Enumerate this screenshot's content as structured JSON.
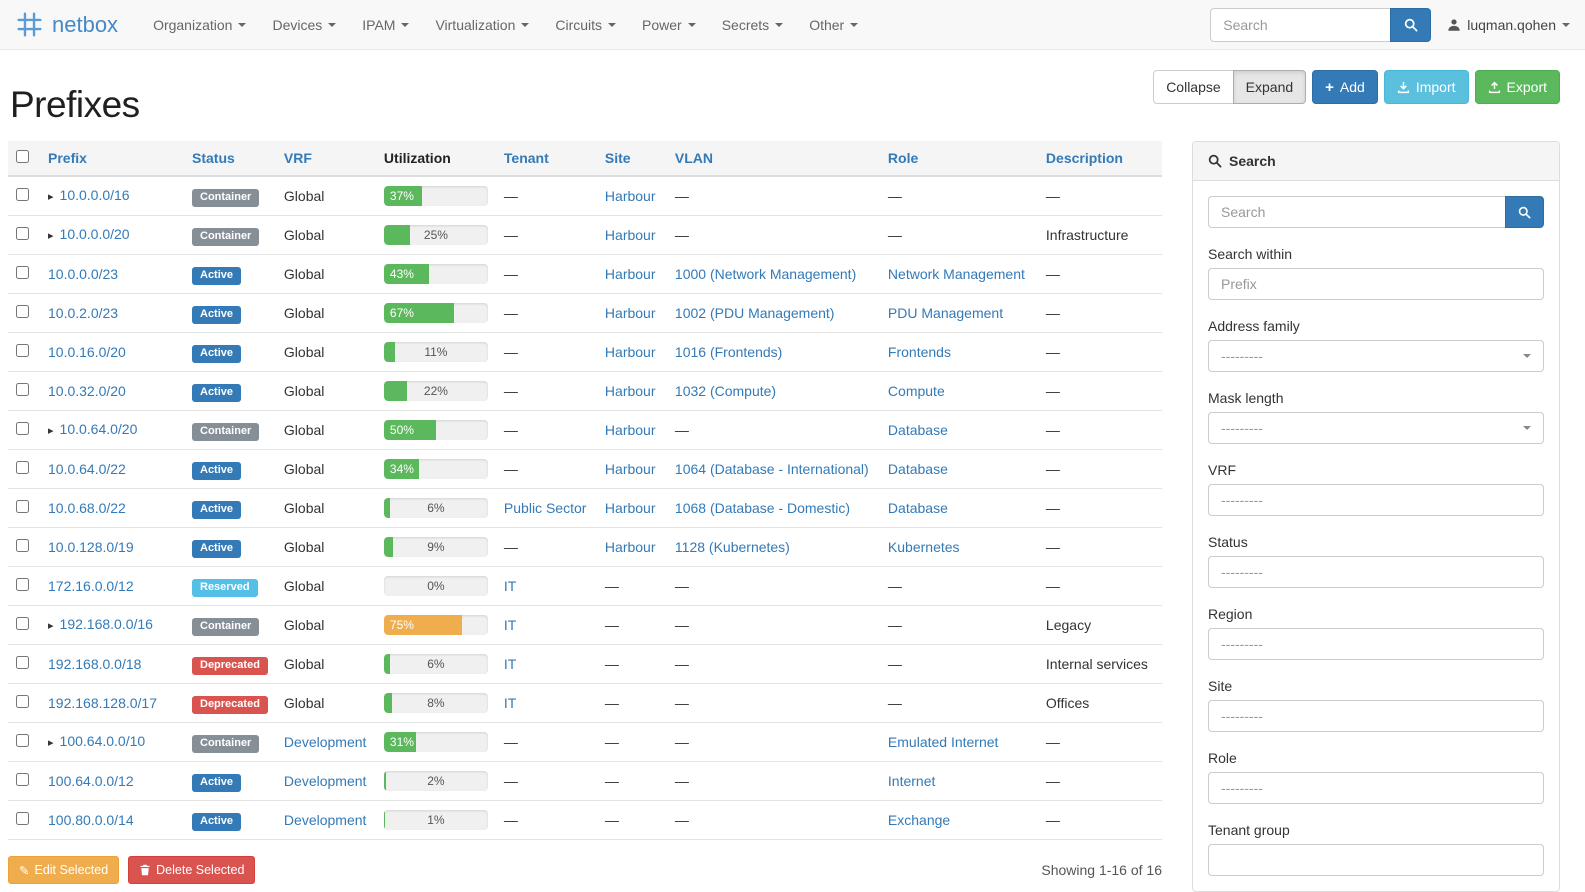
{
  "navbar": {
    "brand": "netbox",
    "menus": [
      "Organization",
      "Devices",
      "IPAM",
      "Virtualization",
      "Circuits",
      "Power",
      "Secrets",
      "Other"
    ],
    "search_placeholder": "Search",
    "user": "luqman.qohen"
  },
  "page": {
    "title": "Prefixes",
    "toolbar": {
      "collapse": "Collapse",
      "expand": "Expand",
      "add": "Add",
      "import": "Import",
      "export": "Export"
    },
    "footer": {
      "edit_selected": "Edit Selected",
      "delete_selected": "Delete Selected",
      "showing": "Showing 1-16 of 16"
    }
  },
  "table": {
    "columns": [
      {
        "label": "Prefix",
        "sortable": true
      },
      {
        "label": "Status",
        "sortable": true
      },
      {
        "label": "VRF",
        "sortable": true
      },
      {
        "label": "Utilization",
        "sortable": false
      },
      {
        "label": "Tenant",
        "sortable": true
      },
      {
        "label": "Site",
        "sortable": true
      },
      {
        "label": "VLAN",
        "sortable": true
      },
      {
        "label": "Role",
        "sortable": true
      },
      {
        "label": "Description",
        "sortable": true
      }
    ],
    "rows": [
      {
        "expand": true,
        "prefix": "10.0.0.0/16",
        "status": {
          "label": "Container",
          "type": "default"
        },
        "vrf": {
          "label": "Global",
          "is_link": false
        },
        "utilization": {
          "pct": 37,
          "label": "37%",
          "color": "success"
        },
        "tenant": {
          "label": "—",
          "is_link": false
        },
        "site": {
          "label": "Harbour",
          "is_link": true
        },
        "vlan": {
          "label": "—",
          "is_link": false
        },
        "role": {
          "label": "—",
          "is_link": false
        },
        "description": "—"
      },
      {
        "expand": true,
        "prefix": "10.0.0.0/20",
        "status": {
          "label": "Container",
          "type": "default"
        },
        "vrf": {
          "label": "Global",
          "is_link": false
        },
        "utilization": {
          "pct": 25,
          "label": "25%",
          "color": "success"
        },
        "tenant": {
          "label": "—",
          "is_link": false
        },
        "site": {
          "label": "Harbour",
          "is_link": true
        },
        "vlan": {
          "label": "—",
          "is_link": false
        },
        "role": {
          "label": "—",
          "is_link": false
        },
        "description": "Infrastructure"
      },
      {
        "expand": false,
        "prefix": "10.0.0.0/23",
        "status": {
          "label": "Active",
          "type": "primary"
        },
        "vrf": {
          "label": "Global",
          "is_link": false
        },
        "utilization": {
          "pct": 43,
          "label": "43%",
          "color": "success"
        },
        "tenant": {
          "label": "—",
          "is_link": false
        },
        "site": {
          "label": "Harbour",
          "is_link": true
        },
        "vlan": {
          "label": "1000 (Network Management)",
          "is_link": true
        },
        "role": {
          "label": "Network Management",
          "is_link": true
        },
        "description": "—"
      },
      {
        "expand": false,
        "prefix": "10.0.2.0/23",
        "status": {
          "label": "Active",
          "type": "primary"
        },
        "vrf": {
          "label": "Global",
          "is_link": false
        },
        "utilization": {
          "pct": 67,
          "label": "67%",
          "color": "success"
        },
        "tenant": {
          "label": "—",
          "is_link": false
        },
        "site": {
          "label": "Harbour",
          "is_link": true
        },
        "vlan": {
          "label": "1002 (PDU Management)",
          "is_link": true
        },
        "role": {
          "label": "PDU Management",
          "is_link": true
        },
        "description": "—"
      },
      {
        "expand": false,
        "prefix": "10.0.16.0/20",
        "status": {
          "label": "Active",
          "type": "primary"
        },
        "vrf": {
          "label": "Global",
          "is_link": false
        },
        "utilization": {
          "pct": 11,
          "label": "11%",
          "color": "success"
        },
        "tenant": {
          "label": "—",
          "is_link": false
        },
        "site": {
          "label": "Harbour",
          "is_link": true
        },
        "vlan": {
          "label": "1016 (Frontends)",
          "is_link": true
        },
        "role": {
          "label": "Frontends",
          "is_link": true
        },
        "description": "—"
      },
      {
        "expand": false,
        "prefix": "10.0.32.0/20",
        "status": {
          "label": "Active",
          "type": "primary"
        },
        "vrf": {
          "label": "Global",
          "is_link": false
        },
        "utilization": {
          "pct": 22,
          "label": "22%",
          "color": "success"
        },
        "tenant": {
          "label": "—",
          "is_link": false
        },
        "site": {
          "label": "Harbour",
          "is_link": true
        },
        "vlan": {
          "label": "1032 (Compute)",
          "is_link": true
        },
        "role": {
          "label": "Compute",
          "is_link": true
        },
        "description": "—"
      },
      {
        "expand": true,
        "prefix": "10.0.64.0/20",
        "status": {
          "label": "Container",
          "type": "default"
        },
        "vrf": {
          "label": "Global",
          "is_link": false
        },
        "utilization": {
          "pct": 50,
          "label": "50%",
          "color": "success"
        },
        "tenant": {
          "label": "—",
          "is_link": false
        },
        "site": {
          "label": "Harbour",
          "is_link": true
        },
        "vlan": {
          "label": "—",
          "is_link": false
        },
        "role": {
          "label": "Database",
          "is_link": true
        },
        "description": "—"
      },
      {
        "expand": false,
        "prefix": "10.0.64.0/22",
        "status": {
          "label": "Active",
          "type": "primary"
        },
        "vrf": {
          "label": "Global",
          "is_link": false
        },
        "utilization": {
          "pct": 34,
          "label": "34%",
          "color": "success"
        },
        "tenant": {
          "label": "—",
          "is_link": false
        },
        "site": {
          "label": "Harbour",
          "is_link": true
        },
        "vlan": {
          "label": "1064 (Database - International)",
          "is_link": true
        },
        "role": {
          "label": "Database",
          "is_link": true
        },
        "description": "—"
      },
      {
        "expand": false,
        "prefix": "10.0.68.0/22",
        "status": {
          "label": "Active",
          "type": "primary"
        },
        "vrf": {
          "label": "Global",
          "is_link": false
        },
        "utilization": {
          "pct": 6,
          "label": "6%",
          "color": "success"
        },
        "tenant": {
          "label": "Public Sector",
          "is_link": true
        },
        "site": {
          "label": "Harbour",
          "is_link": true
        },
        "vlan": {
          "label": "1068 (Database - Domestic)",
          "is_link": true
        },
        "role": {
          "label": "Database",
          "is_link": true
        },
        "description": "—"
      },
      {
        "expand": false,
        "prefix": "10.0.128.0/19",
        "status": {
          "label": "Active",
          "type": "primary"
        },
        "vrf": {
          "label": "Global",
          "is_link": false
        },
        "utilization": {
          "pct": 9,
          "label": "9%",
          "color": "success"
        },
        "tenant": {
          "label": "—",
          "is_link": false
        },
        "site": {
          "label": "Harbour",
          "is_link": true
        },
        "vlan": {
          "label": "1128 (Kubernetes)",
          "is_link": true
        },
        "role": {
          "label": "Kubernetes",
          "is_link": true
        },
        "description": "—"
      },
      {
        "expand": false,
        "prefix": "172.16.0.0/12",
        "status": {
          "label": "Reserved",
          "type": "info"
        },
        "vrf": {
          "label": "Global",
          "is_link": false
        },
        "utilization": {
          "pct": 0,
          "label": "0%",
          "color": "success"
        },
        "tenant": {
          "label": "IT",
          "is_link": true
        },
        "site": {
          "label": "—",
          "is_link": false
        },
        "vlan": {
          "label": "—",
          "is_link": false
        },
        "role": {
          "label": "—",
          "is_link": false
        },
        "description": "—"
      },
      {
        "expand": true,
        "prefix": "192.168.0.0/16",
        "status": {
          "label": "Container",
          "type": "default"
        },
        "vrf": {
          "label": "Global",
          "is_link": false
        },
        "utilization": {
          "pct": 75,
          "label": "75%",
          "color": "warning"
        },
        "tenant": {
          "label": "IT",
          "is_link": true
        },
        "site": {
          "label": "—",
          "is_link": false
        },
        "vlan": {
          "label": "—",
          "is_link": false
        },
        "role": {
          "label": "—",
          "is_link": false
        },
        "description": "Legacy"
      },
      {
        "expand": false,
        "prefix": "192.168.0.0/18",
        "status": {
          "label": "Deprecated",
          "type": "danger"
        },
        "vrf": {
          "label": "Global",
          "is_link": false
        },
        "utilization": {
          "pct": 6,
          "label": "6%",
          "color": "success"
        },
        "tenant": {
          "label": "IT",
          "is_link": true
        },
        "site": {
          "label": "—",
          "is_link": false
        },
        "vlan": {
          "label": "—",
          "is_link": false
        },
        "role": {
          "label": "—",
          "is_link": false
        },
        "description": "Internal services"
      },
      {
        "expand": false,
        "prefix": "192.168.128.0/17",
        "status": {
          "label": "Deprecated",
          "type": "danger"
        },
        "vrf": {
          "label": "Global",
          "is_link": false
        },
        "utilization": {
          "pct": 8,
          "label": "8%",
          "color": "success"
        },
        "tenant": {
          "label": "IT",
          "is_link": true
        },
        "site": {
          "label": "—",
          "is_link": false
        },
        "vlan": {
          "label": "—",
          "is_link": false
        },
        "role": {
          "label": "—",
          "is_link": false
        },
        "description": "Offices"
      },
      {
        "expand": true,
        "prefix": "100.64.0.0/10",
        "status": {
          "label": "Container",
          "type": "default"
        },
        "vrf": {
          "label": "Development",
          "is_link": true
        },
        "utilization": {
          "pct": 31,
          "label": "31%",
          "color": "success"
        },
        "tenant": {
          "label": "—",
          "is_link": false
        },
        "site": {
          "label": "—",
          "is_link": false
        },
        "vlan": {
          "label": "—",
          "is_link": false
        },
        "role": {
          "label": "Emulated Internet",
          "is_link": true
        },
        "description": "—"
      },
      {
        "expand": false,
        "prefix": "100.64.0.0/12",
        "status": {
          "label": "Active",
          "type": "primary"
        },
        "vrf": {
          "label": "Development",
          "is_link": true
        },
        "utilization": {
          "pct": 2,
          "label": "2%",
          "color": "success"
        },
        "tenant": {
          "label": "—",
          "is_link": false
        },
        "site": {
          "label": "—",
          "is_link": false
        },
        "vlan": {
          "label": "—",
          "is_link": false
        },
        "role": {
          "label": "Internet",
          "is_link": true
        },
        "description": "—"
      },
      {
        "expand": false,
        "prefix": "100.80.0.0/14",
        "status": {
          "label": "Active",
          "type": "primary"
        },
        "vrf": {
          "label": "Development",
          "is_link": true
        },
        "utilization": {
          "pct": 1,
          "label": "1%",
          "color": "success"
        },
        "tenant": {
          "label": "—",
          "is_link": false
        },
        "site": {
          "label": "—",
          "is_link": false
        },
        "vlan": {
          "label": "—",
          "is_link": false
        },
        "role": {
          "label": "Exchange",
          "is_link": true
        },
        "description": "—"
      }
    ]
  },
  "sidebar": {
    "title": "Search",
    "search_placeholder": "Search",
    "fields": [
      {
        "label": "Search within",
        "type": "input",
        "placeholder": "Prefix"
      },
      {
        "label": "Address family",
        "type": "select",
        "value": "---------"
      },
      {
        "label": "Mask length",
        "type": "select",
        "value": "---------"
      },
      {
        "label": "VRF",
        "type": "box",
        "value": "---------"
      },
      {
        "label": "Status",
        "type": "box",
        "value": "---------"
      },
      {
        "label": "Region",
        "type": "box",
        "value": "---------"
      },
      {
        "label": "Site",
        "type": "box",
        "value": "---------"
      },
      {
        "label": "Role",
        "type": "box",
        "value": "---------"
      },
      {
        "label": "Tenant group",
        "type": "box",
        "value": ""
      }
    ]
  },
  "icons": {
    "expand_caret": "▸",
    "plus": "+",
    "pencil": "✎"
  },
  "colors": {
    "primary": "#337ab7",
    "info": "#5bc0de",
    "success": "#5cb85c",
    "warning": "#f0ad4e",
    "danger": "#d9534f",
    "container_gray": "#868e96",
    "link": "#337ab7"
  }
}
